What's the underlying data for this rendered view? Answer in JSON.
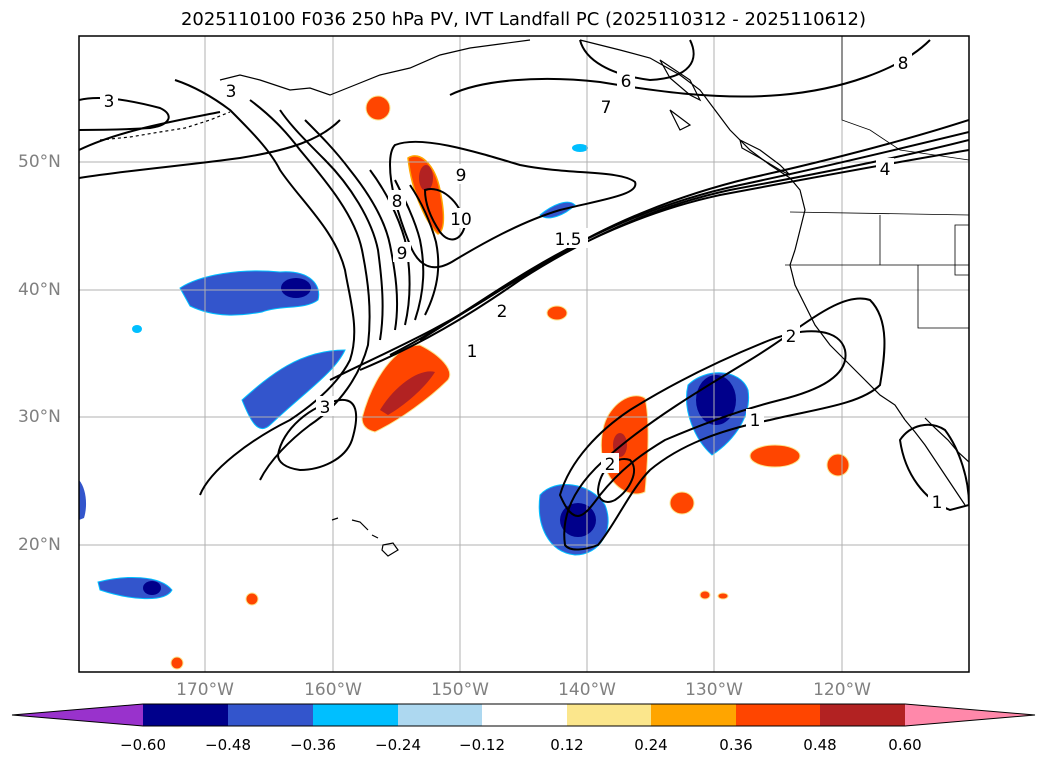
{
  "title": "2025110100 F036 250 hPa PV, IVT Landfall PC (2025110312 - 2025110612)",
  "map": {
    "lat_labels": [
      "50°N",
      "40°N",
      "30°N",
      "20°N"
    ],
    "lon_labels": [
      "170°W",
      "160°W",
      "150°W",
      "140°W",
      "130°W",
      "120°W"
    ],
    "contour_labels": [
      "3",
      "3",
      "6",
      "7",
      "8",
      "9",
      "8",
      "10",
      "9",
      "1.5",
      "2",
      "1",
      "3",
      "2",
      "1",
      "2",
      "1",
      "4"
    ]
  },
  "colorbar": {
    "ticks": [
      "−0.60",
      "−0.48",
      "−0.36",
      "−0.24",
      "−0.12",
      "0.12",
      "0.24",
      "0.36",
      "0.48",
      "0.60"
    ],
    "colors": [
      "#9932cc",
      "#00008b",
      "#3355cc",
      "#00bfff",
      "#add8f0",
      "#ffffff",
      "#fbe68c",
      "#ffa500",
      "#ff4500",
      "#b22222",
      "#ff88aa"
    ]
  }
}
